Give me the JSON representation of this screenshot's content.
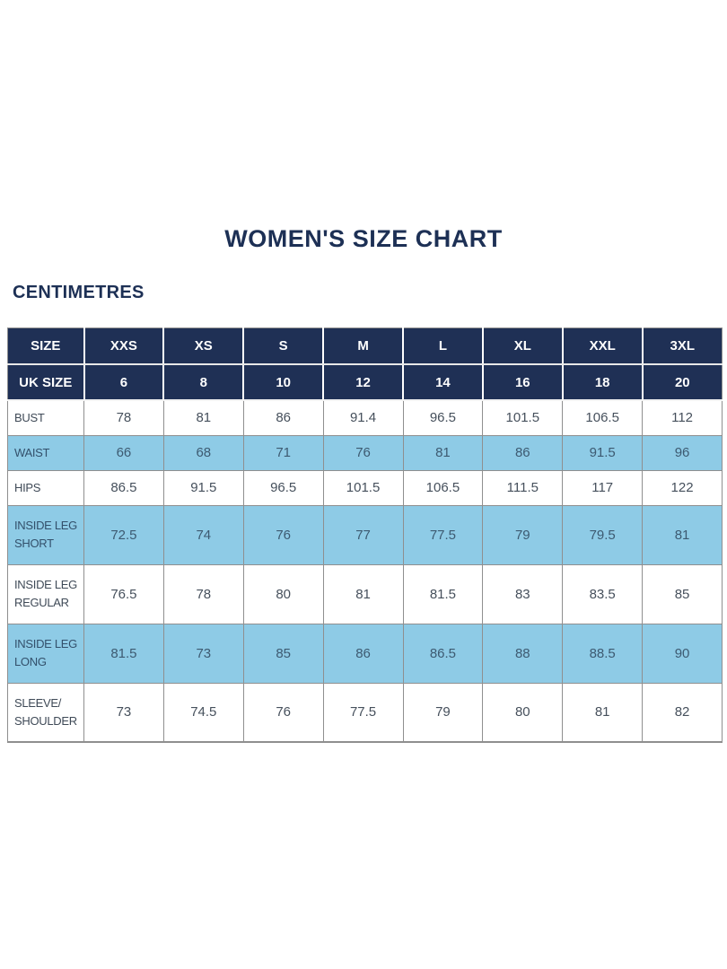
{
  "page": {
    "title": "WOMEN'S SIZE CHART",
    "unit_label": "CENTIMETRES"
  },
  "colors": {
    "navy": "#1f3055",
    "light_blue": "#8ecbe6",
    "data_text": "#46505c",
    "grid_line": "#8f8f8f",
    "background": "#ffffff"
  },
  "chart_data": {
    "type": "table",
    "title": "WOMEN'S SIZE CHART",
    "unit": "CENTIMETRES",
    "columns": [
      "SIZE",
      "XXS",
      "XS",
      "S",
      "M",
      "L",
      "XL",
      "XXL",
      "3XL"
    ],
    "uk_sizes": {
      "label": "UK SIZE",
      "values": [
        6,
        8,
        10,
        12,
        14,
        16,
        18,
        20
      ]
    },
    "rows": [
      {
        "label": "BUST",
        "label_lines": [
          "BUST"
        ],
        "values": [
          78,
          81,
          86,
          91.4,
          96.5,
          101.5,
          106.5,
          112
        ]
      },
      {
        "label": "WAIST",
        "label_lines": [
          "WAIST"
        ],
        "values": [
          66,
          68,
          71,
          76,
          81,
          86,
          91.5,
          96
        ]
      },
      {
        "label": "HIPS",
        "label_lines": [
          "HIPS"
        ],
        "values": [
          86.5,
          91.5,
          96.5,
          101.5,
          106.5,
          111.5,
          117,
          122
        ]
      },
      {
        "label": "INSIDE LEG SHORT",
        "label_lines": [
          "INSIDE LEG",
          "SHORT"
        ],
        "values": [
          72.5,
          74,
          76,
          77,
          77.5,
          79,
          79.5,
          81
        ]
      },
      {
        "label": "INSIDE LEG REGULAR",
        "label_lines": [
          "INSIDE LEG",
          "REGULAR"
        ],
        "values": [
          76.5,
          78,
          80,
          81,
          81.5,
          83,
          83.5,
          85
        ]
      },
      {
        "label": "INSIDE LEG LONG",
        "label_lines": [
          "INSIDE LEG",
          "LONG"
        ],
        "values": [
          81.5,
          73,
          85,
          86,
          86.5,
          88,
          88.5,
          90
        ]
      },
      {
        "label": "SLEEVE/SHOULDER",
        "label_lines": [
          "SLEEVE/",
          "SHOULDER"
        ],
        "values": [
          73,
          74.5,
          76,
          77.5,
          79,
          80,
          81,
          82
        ]
      }
    ]
  }
}
